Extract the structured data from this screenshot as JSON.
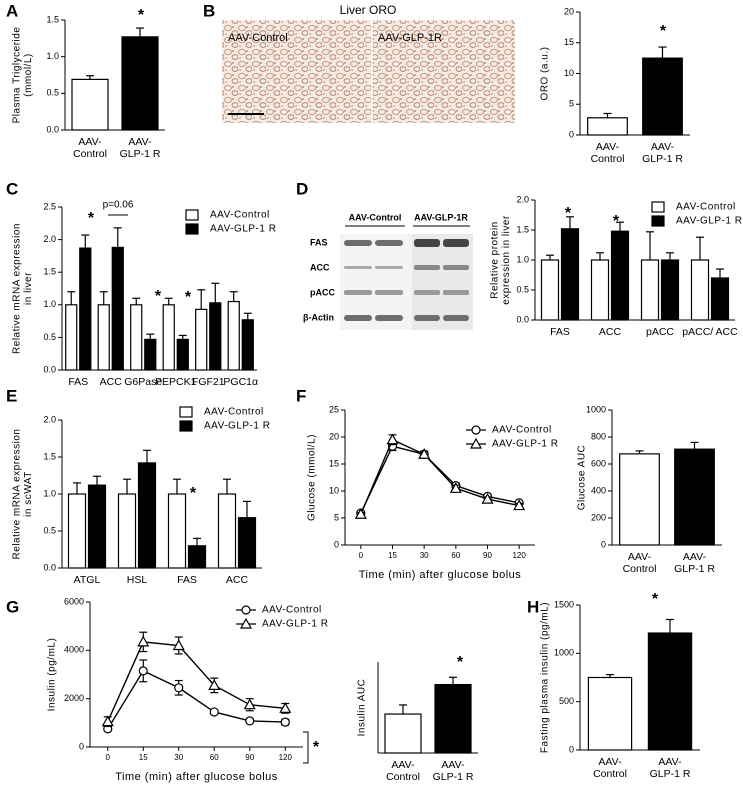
{
  "figure": {
    "panel_labels": [
      "A",
      "B",
      "C",
      "D",
      "E",
      "F",
      "G",
      "H"
    ],
    "oro_image": {
      "title": "Liver ORO",
      "labels": [
        "AAV-Control",
        "AAV-GLP-1R"
      ]
    },
    "blot": {
      "groups": [
        "AAV-Control",
        "AAV-GLP-1R"
      ],
      "rows": [
        "FAS",
        "ACC",
        "pACC",
        "β-Actin"
      ]
    }
  },
  "chart_data": [
    {
      "type": "bar",
      "ylabel": "Plasma Triglyceride\n(mmol/L)",
      "categories": [
        "AAV-\nControl",
        "AAV-\nGLP-1 R"
      ],
      "values": [
        0.69,
        1.27
      ],
      "errors": [
        0.05,
        0.12
      ],
      "colors": [
        "#ffffff",
        "#000000"
      ],
      "ylim": [
        0,
        1.5
      ],
      "yticks": [
        {
          "value": 0,
          "label": "0.0"
        },
        0.5,
        {
          "value": 1,
          "label": "1.0"
        },
        1.5
      ],
      "annotations": [
        "*"
      ]
    },
    {
      "type": "bar",
      "ylabel": "ORO (a.u.)",
      "categories": [
        "AAV-\nControl",
        "AAV-\nGLP-1 R"
      ],
      "values": [
        2.8,
        12.5
      ],
      "errors": [
        0.7,
        1.8
      ],
      "colors": [
        "#ffffff",
        "#000000"
      ],
      "ylim": [
        0,
        20
      ],
      "yticks": [
        0,
        5,
        10,
        15,
        20
      ],
      "annotations": [
        "*"
      ]
    },
    {
      "type": "bar",
      "ylabel": "Relative mRNA expression\nin liver",
      "categories": [
        "FAS",
        "ACC",
        "G6Pase",
        "PEPCK1",
        "FGF21",
        "PGC1α"
      ],
      "series": [
        {
          "name": "AAV-Control",
          "color": "#ffffff",
          "values": [
            1.0,
            1.0,
            1.0,
            1.0,
            0.93,
            1.05
          ],
          "errors": [
            0.2,
            0.2,
            0.1,
            0.1,
            0.3,
            0.15
          ]
        },
        {
          "name": "AAV-GLP-1 R",
          "color": "#000000",
          "values": [
            1.87,
            1.88,
            0.47,
            0.47,
            1.03,
            0.77
          ],
          "errors": [
            0.2,
            0.3,
            0.08,
            0.06,
            0.3,
            0.1
          ]
        }
      ],
      "ylim": [
        0,
        2.5
      ],
      "yticks": [
        {
          "value": 0,
          "label": "0.0"
        },
        0.5,
        {
          "value": 1,
          "label": "1.0"
        },
        1.5,
        {
          "value": 2,
          "label": "2.0"
        },
        2.5
      ],
      "legend": "upper right",
      "annotations": [
        "*",
        "p=0.06",
        "*",
        "*"
      ]
    },
    {
      "type": "bar",
      "ylabel": "Relative protein\nexpression in liver",
      "categories": [
        "FAS",
        "ACC",
        "pACC",
        "pACC/ ACC"
      ],
      "series": [
        {
          "name": "AAV-Control",
          "color": "#ffffff",
          "values": [
            1.0,
            1.0,
            1.0,
            1.0
          ],
          "errors": [
            0.08,
            0.12,
            0.47,
            0.38
          ]
        },
        {
          "name": "AAV-GLP-1 R",
          "color": "#000000",
          "values": [
            1.52,
            1.48,
            1.0,
            0.7
          ],
          "errors": [
            0.2,
            0.15,
            0.12,
            0.15
          ]
        }
      ],
      "ylim": [
        0,
        2
      ],
      "yticks": [
        {
          "value": 0,
          "label": "0.0"
        },
        0.5,
        {
          "value": 1,
          "label": "1.0"
        },
        1.5,
        {
          "value": 2,
          "label": "2.0"
        }
      ],
      "legend": "upper right",
      "annotations": [
        "*",
        "*"
      ]
    },
    {
      "type": "bar",
      "ylabel": "Relative mRNA expression\nin scWAT",
      "categories": [
        "ATGL",
        "HSL",
        "FAS",
        "ACC"
      ],
      "series": [
        {
          "name": "AAV-Control",
          "color": "#ffffff",
          "values": [
            1.0,
            1.0,
            1.0,
            1.0
          ],
          "errors": [
            0.15,
            0.2,
            0.2,
            0.2
          ]
        },
        {
          "name": "AAV-GLP-1 R",
          "color": "#000000",
          "values": [
            1.12,
            1.42,
            0.3,
            0.68
          ],
          "errors": [
            0.12,
            0.17,
            0.1,
            0.22
          ]
        }
      ],
      "ylim": [
        0,
        2
      ],
      "yticks": [
        {
          "value": 0,
          "label": "0.0"
        },
        0.5,
        {
          "value": 1,
          "label": "1.0"
        },
        1.5,
        {
          "value": 2,
          "label": "2.0"
        }
      ],
      "legend": "upper right",
      "annotations": [
        "*"
      ]
    },
    {
      "type": "line",
      "ylabel": "Glucose (mmol/L)",
      "xlabel": "Time (min) after glucose bolus",
      "categories": [
        "0",
        "15",
        "30",
        "60",
        "90",
        "120"
      ],
      "series": [
        {
          "name": "AAV-Control",
          "color": "#000000",
          "marker": "circle",
          "values": [
            5.9,
            18.3,
            16.8,
            11.0,
            9.0,
            7.8
          ],
          "errors": [
            0.3,
            0.8,
            0.5,
            0.5,
            0.4,
            0.3
          ]
        },
        {
          "name": "AAV-GLP-1 R",
          "color": "#000000",
          "marker": "triangle",
          "values": [
            5.7,
            19.5,
            16.8,
            10.5,
            8.5,
            7.3
          ],
          "errors": [
            0.3,
            0.9,
            0.6,
            0.6,
            0.4,
            0.4
          ]
        }
      ],
      "ylim": [
        0,
        25
      ],
      "yticks": [
        0,
        5,
        10,
        15,
        20,
        25
      ],
      "legend": "upper right"
    },
    {
      "type": "bar",
      "ylabel": "Glucose AUC",
      "categories": [
        "AAV-\nControl",
        "AAV-\nGLP-1 R"
      ],
      "values": [
        675,
        710
      ],
      "errors": [
        22,
        50
      ],
      "colors": [
        "#ffffff",
        "#000000"
      ],
      "ylim": [
        0,
        1000
      ],
      "yticks": [
        0,
        200,
        400,
        600,
        800,
        1000
      ]
    },
    {
      "type": "line",
      "ylabel": "Insulin (pg/mL)",
      "xlabel": "Time (min) after glucose bolus",
      "categories": [
        "0",
        "15",
        "30",
        "60",
        "90",
        "120"
      ],
      "series": [
        {
          "name": "AAV-Control",
          "color": "#000000",
          "marker": "circle",
          "values": [
            750,
            3150,
            2450,
            1450,
            1080,
            1030
          ],
          "errors": [
            80,
            450,
            300,
            80,
            80,
            120
          ]
        },
        {
          "name": "AAV-GLP-1 R",
          "color": "#000000",
          "marker": "triangle",
          "values": [
            1050,
            4350,
            4200,
            2550,
            1750,
            1600
          ],
          "errors": [
            200,
            400,
            350,
            300,
            250,
            200
          ]
        }
      ],
      "ylim": [
        0,
        6000
      ],
      "yticks": [
        0,
        2000,
        4000,
        6000
      ],
      "legend": "upper right",
      "annotations": [
        "*"
      ]
    },
    {
      "type": "bar",
      "ylabel": "Insulin AUC",
      "categories": [
        "AAV-\nControl",
        "AAV-\nGLP-1 R"
      ],
      "values": [
        107,
        188
      ],
      "errors": [
        25,
        20
      ],
      "colors": [
        "#ffffff",
        "#000000"
      ],
      "ylim": [
        0,
        250
      ],
      "annotations": [
        "*"
      ]
    },
    {
      "type": "bar",
      "ylabel": "Fasting plasma insulin (pg/mL)",
      "categories": [
        "AAV-\nControl",
        "AAV-\nGLP-1 R"
      ],
      "values": [
        750,
        1210
      ],
      "errors": [
        30,
        140
      ],
      "colors": [
        "#ffffff",
        "#000000"
      ],
      "ylim": [
        0,
        1500
      ],
      "yticks": [
        0,
        500,
        1000,
        1500
      ],
      "annotations": [
        "*"
      ]
    }
  ]
}
